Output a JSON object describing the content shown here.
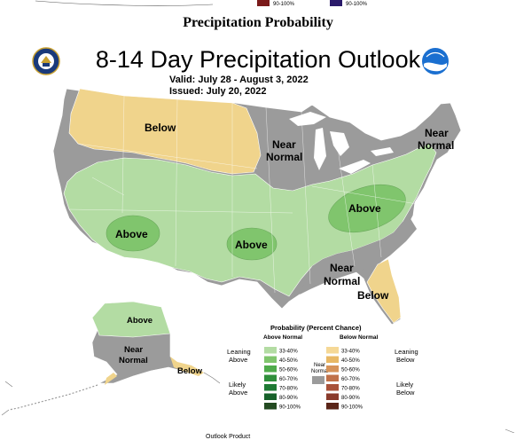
{
  "page_title": "Precipitation Probability",
  "map": {
    "title": "8-14 Day Precipitation Outlook",
    "valid_label": "Valid:",
    "valid_value": "July 28 - August 3, 2022",
    "issued_label": "Issued:",
    "issued_value": "July 20, 2022",
    "regions": {
      "below_north": "Below",
      "near_normal_central_1": "Near",
      "near_normal_central_2": "Normal",
      "near_normal_ne_1": "Near",
      "near_normal_ne_2": "Normal",
      "above_southwest": "Above",
      "above_plains": "Above",
      "above_appalachia": "Above",
      "near_normal_south_1": "Near",
      "near_normal_south_2": "Normal",
      "below_southeast": "Below",
      "alaska_above": "Above",
      "alaska_near_1": "Near",
      "alaska_near_2": "Normal",
      "alaska_below": "Below"
    },
    "colors": {
      "near_normal": "#9b9b9b",
      "above_33_40": "#b3dca3",
      "above_40_50": "#80c56d",
      "below_33_40": "#f0d48c",
      "below_40_50": "#e2b55d",
      "water": "#ffffff"
    }
  },
  "legend": {
    "title": "Probability (Percent Chance)",
    "above_header": "Above Normal",
    "below_header": "Below Normal",
    "leaning_above": [
      "Leaning",
      "Above"
    ],
    "likely_above": [
      "Likely",
      "Above"
    ],
    "leaning_below": [
      "Leaning",
      "Below"
    ],
    "likely_below": [
      "Likely",
      "Below"
    ],
    "near_normal_label": [
      "Near",
      "Normal"
    ],
    "ranges": [
      "33-40%",
      "40-50%",
      "50-60%",
      "60-70%",
      "70-80%",
      "80-90%",
      "90-100%"
    ],
    "above_colors": [
      "#b3dca3",
      "#80c56d",
      "#4fab4b",
      "#2f8f3b",
      "#1f7a34",
      "#17612a",
      "#234a21"
    ],
    "below_colors": [
      "#f5d896",
      "#e8b865",
      "#d6935a",
      "#c0714a",
      "#a9523a",
      "#8a3a2b",
      "#5a2418"
    ],
    "top_strip_left": "90-100%",
    "top_strip_right": "90-100%"
  },
  "footer_text": "Outlook Product"
}
